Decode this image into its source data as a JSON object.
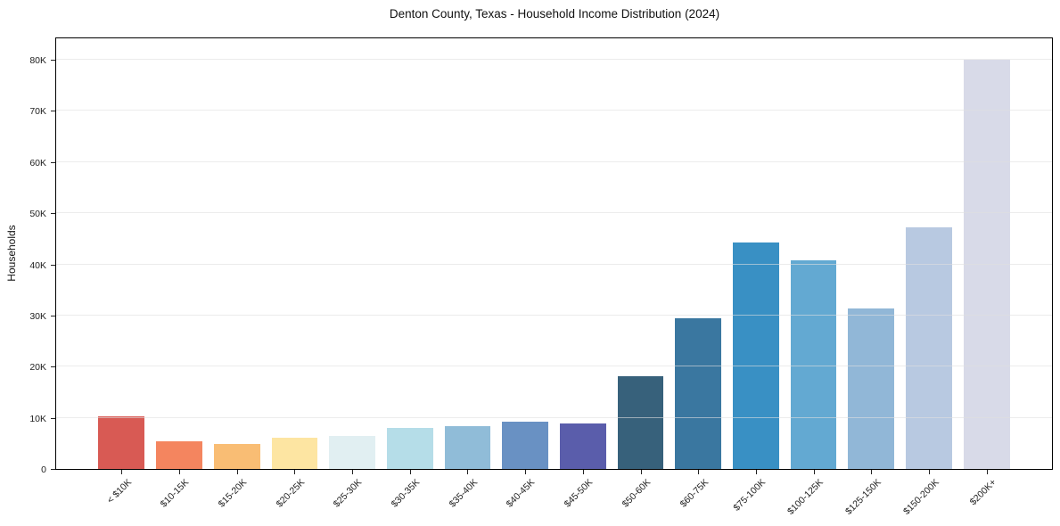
{
  "chart_data": {
    "type": "bar",
    "title": "Denton County, Texas - Household Income Distribution (2024)",
    "xlabel": "",
    "ylabel": "Households",
    "categories": [
      "< $10K",
      "$10-15K",
      "$15-20K",
      "$20-25K",
      "$25-30K",
      "$30-35K",
      "$35-40K",
      "$40-45K",
      "$45-50K",
      "$50-60K",
      "$60-75K",
      "$75-100K",
      "$100-125K",
      "$125-150K",
      "$150-200K",
      "$200K+"
    ],
    "values": [
      10300,
      5400,
      4900,
      6100,
      6500,
      8000,
      8300,
      9200,
      8900,
      18100,
      29400,
      44300,
      40800,
      31400,
      47300,
      80000
    ],
    "bar_colors": [
      "#d85a54",
      "#f4855f",
      "#f9bd74",
      "#fde5a2",
      "#e1eff2",
      "#b5dde8",
      "#90bcd8",
      "#6991c3",
      "#5a5dab",
      "#37617b",
      "#3a77a0",
      "#3990c4",
      "#63a9d2",
      "#91b7d7",
      "#b8c9e1",
      "#d8dae8"
    ],
    "yticks": [
      "0",
      "10K",
      "20K",
      "30K",
      "40K",
      "50K",
      "60K",
      "70K",
      "80K"
    ],
    "ylim": [
      0,
      84500
    ],
    "grid": "horizontal",
    "legend": "none",
    "plot_background": "#ffffff"
  }
}
